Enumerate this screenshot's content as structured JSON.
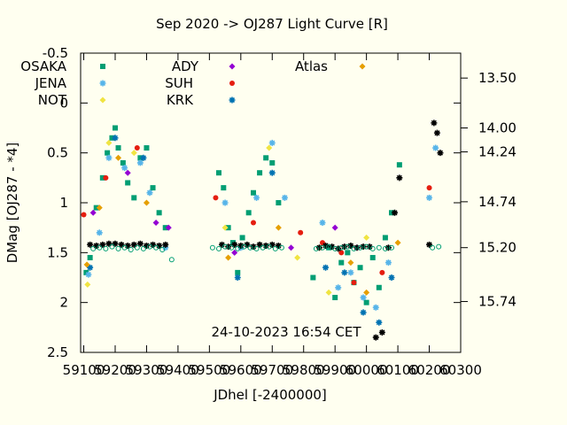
{
  "chart_data": {
    "type": "scatter",
    "title": "Sep 2020 ->   OJ287 Light Curve [R]",
    "xlabel": "JDhel [-2400000]",
    "ylabel": "DMag [OJ287 - *4]",
    "xlim": [
      59090,
      60300
    ],
    "ylim": [
      2.5,
      -0.5
    ],
    "x_ticks": [
      59100,
      59200,
      59300,
      59400,
      59500,
      59600,
      59700,
      59800,
      59900,
      60000,
      60100,
      60200,
      60300
    ],
    "y_ticks": [
      -0.5,
      0,
      0.5,
      1,
      1.5,
      2,
      2.5
    ],
    "y2_ticks": [
      {
        "at": -0.25,
        "label": "13.50"
      },
      {
        "at": 0.25,
        "label": "14.00"
      },
      {
        "at": 0.49,
        "label": "14.24"
      },
      {
        "at": 0.99,
        "label": "14.74"
      },
      {
        "at": 1.45,
        "label": "15.20"
      },
      {
        "at": 1.99,
        "label": "15.74"
      }
    ],
    "annotation": "24-10-2023  16:54 CET",
    "legend_position": "top",
    "grid": false,
    "series": [
      {
        "name": "OSAKA",
        "color": "#009e73",
        "marker": "square",
        "x": [
          59108,
          59120,
          59140,
          59160,
          59175,
          59190,
          59200,
          59210,
          59225,
          59240,
          59260,
          59280,
          59300,
          59320,
          59340,
          59360,
          59530,
          59545,
          59560,
          59575,
          59590,
          59605,
          59625,
          59640,
          59660,
          59680,
          59700,
          59720,
          59830,
          59880,
          59900,
          59920,
          59940,
          59960,
          59980,
          60000,
          60020,
          60040,
          60060,
          60080,
          60105
        ],
        "y": [
          1.7,
          1.55,
          1.05,
          0.75,
          0.5,
          0.35,
          0.25,
          0.45,
          0.6,
          0.8,
          0.95,
          0.55,
          0.45,
          0.85,
          1.1,
          1.25,
          0.7,
          0.85,
          1.25,
          1.4,
          1.7,
          1.35,
          1.1,
          0.9,
          0.7,
          0.55,
          0.6,
          1.0,
          1.75,
          1.45,
          1.95,
          1.6,
          1.5,
          1.8,
          1.65,
          2.0,
          1.55,
          1.85,
          1.35,
          1.1,
          0.62
        ]
      },
      {
        "name": "JENA",
        "color": "#56b4e9",
        "marker": "star",
        "x": [
          59115,
          59150,
          59180,
          59230,
          59280,
          59310,
          59360,
          59550,
          59600,
          59650,
          59700,
          59740,
          59860,
          59910,
          59950,
          59990,
          60030,
          60070,
          60200,
          60220
        ],
        "y": [
          1.72,
          1.3,
          0.55,
          0.65,
          0.6,
          0.9,
          1.45,
          1.0,
          1.45,
          0.95,
          0.4,
          0.95,
          1.2,
          1.85,
          1.7,
          1.95,
          2.05,
          1.6,
          0.95,
          0.45
        ]
      },
      {
        "name": "NOT",
        "color": "#f0e442",
        "marker": "diamond",
        "x": [
          59112,
          59180,
          59260,
          59550,
          59690,
          59780,
          59880,
          60000
        ],
        "y": [
          1.82,
          0.4,
          0.5,
          1.25,
          0.45,
          1.55,
          1.9,
          1.35
        ]
      },
      {
        "name": "ADY",
        "color": "#9400d3",
        "marker": "diamond",
        "x": [
          59130,
          59240,
          59330,
          59370,
          59580,
          59760,
          59900,
          59970
        ],
        "y": [
          1.1,
          0.7,
          1.2,
          1.25,
          1.5,
          1.45,
          1.25,
          1.45
        ]
      },
      {
        "name": "SUH",
        "color": "#e51e10",
        "marker": "circle",
        "x": [
          59100,
          59170,
          59270,
          59520,
          59640,
          59790,
          59860,
          59920,
          59960,
          60050,
          60200
        ],
        "y": [
          1.12,
          0.75,
          0.45,
          0.95,
          1.2,
          1.3,
          1.4,
          1.5,
          1.8,
          1.7,
          0.85
        ]
      },
      {
        "name": "KRK",
        "color": "#0072b2",
        "marker": "star",
        "x": [
          59120,
          59200,
          59290,
          59590,
          59700,
          59870,
          59930,
          59990,
          60040,
          60080
        ],
        "y": [
          1.65,
          0.35,
          0.55,
          1.75,
          0.7,
          1.65,
          1.7,
          2.1,
          2.2,
          1.75
        ]
      },
      {
        "name": "Atlas",
        "color": "#e69f00",
        "marker": "diamond",
        "x": [
          59110,
          59150,
          59210,
          59300,
          59560,
          59720,
          59850,
          59950,
          60000,
          60100
        ],
        "y": [
          1.62,
          1.05,
          0.55,
          1.0,
          1.55,
          1.25,
          1.45,
          1.6,
          1.9,
          1.4
        ]
      },
      {
        "color": "#000000",
        "marker": "star",
        "x": [
          59120,
          59140,
          59160,
          59180,
          59200,
          59220,
          59240,
          59260,
          59280,
          59300,
          59320,
          59340,
          59360,
          59540,
          59560,
          59580,
          59600,
          59620,
          59640,
          59660,
          59680,
          59700,
          59720,
          59850,
          59870,
          59890,
          59910,
          59930,
          59950,
          59970,
          59990,
          60010,
          60030,
          60050,
          60070,
          60090,
          60105,
          60200,
          60215,
          60225,
          60235
        ],
        "y": [
          1.42,
          1.43,
          1.42,
          1.41,
          1.41,
          1.42,
          1.43,
          1.42,
          1.41,
          1.43,
          1.42,
          1.43,
          1.42,
          1.42,
          1.44,
          1.42,
          1.43,
          1.42,
          1.44,
          1.42,
          1.43,
          1.42,
          1.43,
          1.45,
          1.43,
          1.44,
          1.46,
          1.44,
          1.43,
          1.45,
          1.44,
          1.44,
          2.35,
          2.3,
          1.45,
          1.1,
          0.75,
          1.42,
          0.2,
          0.3,
          0.5
        ]
      },
      {
        "color": "#009e73",
        "marker": "circle-open",
        "x": [
          59130,
          59150,
          59170,
          59190,
          59210,
          59230,
          59250,
          59270,
          59290,
          59310,
          59330,
          59350,
          59380,
          59510,
          59530,
          59550,
          59570,
          59590,
          59610,
          59630,
          59650,
          59670,
          59690,
          59710,
          59730,
          59840,
          59860,
          59880,
          59900,
          59920,
          59940,
          59960,
          59980,
          60000,
          60020,
          60040,
          60060,
          60080,
          60210,
          60230
        ],
        "y": [
          1.46,
          1.45,
          1.46,
          1.44,
          1.46,
          1.45,
          1.47,
          1.45,
          1.46,
          1.44,
          1.45,
          1.47,
          1.57,
          1.45,
          1.46,
          1.44,
          1.45,
          1.46,
          1.44,
          1.45,
          1.46,
          1.45,
          1.44,
          1.46,
          1.45,
          1.46,
          1.45,
          1.44,
          1.46,
          1.45,
          1.44,
          1.46,
          1.45,
          1.44,
          1.46,
          1.45,
          1.46,
          1.45,
          1.45,
          1.44
        ]
      }
    ]
  }
}
